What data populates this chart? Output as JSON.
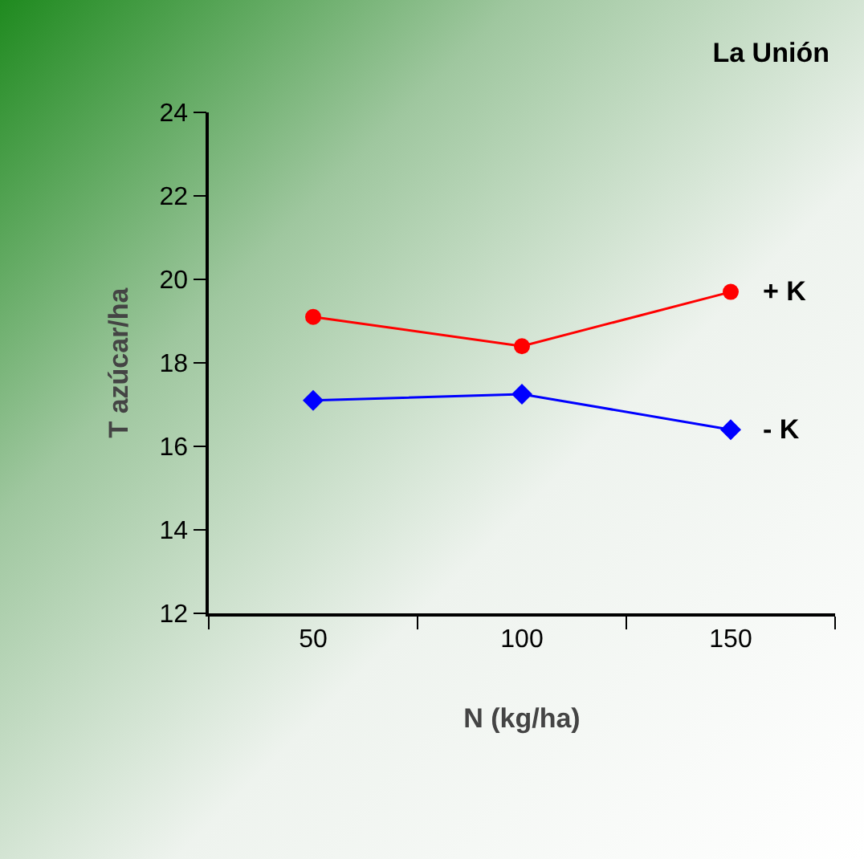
{
  "chart_data": {
    "type": "line",
    "title": "La Unión",
    "xlabel": "N (kg/ha)",
    "ylabel": "T azúcar/ha",
    "categories": [
      "50",
      "100",
      "150"
    ],
    "series": [
      {
        "name": "+ K",
        "color": "#ff0000",
        "marker": "circle",
        "values": [
          19.1,
          18.4,
          19.7
        ]
      },
      {
        "name": "- K",
        "color": "#0000ff",
        "marker": "diamond",
        "values": [
          17.1,
          17.25,
          16.4
        ]
      }
    ],
    "ylim": [
      12,
      24
    ],
    "yticks": [
      12,
      14,
      16,
      18,
      20,
      22,
      24
    ],
    "grid": false,
    "legend": false
  }
}
